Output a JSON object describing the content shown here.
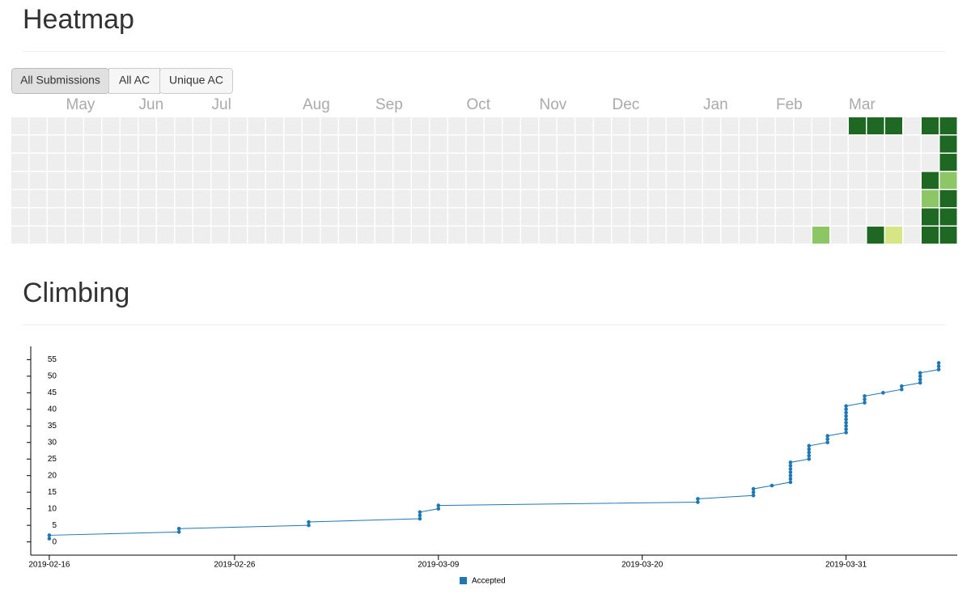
{
  "headings": [
    "Heatmap",
    "Climbing"
  ],
  "buttons": [
    "All Submissions",
    "All AC",
    "Unique AC"
  ],
  "chart_data": [
    {
      "type": "heatmap",
      "months": [
        "May",
        "Jun",
        "Jul",
        "Aug",
        "Sep",
        "Oct",
        "Nov",
        "Dec",
        "Jan",
        "Feb",
        "Mar"
      ],
      "colors": [
        "#eeeeee",
        "#d6e685",
        "#8cc665",
        "#1e6823"
      ],
      "levels": [
        [
          0,
          0,
          0,
          0,
          0,
          0,
          0,
          0,
          0,
          0,
          0,
          0,
          0,
          0,
          0,
          0,
          0,
          0,
          0,
          0,
          0,
          0,
          0,
          0,
          0,
          0,
          0,
          0,
          0,
          0,
          0,
          0,
          0,
          0,
          0,
          0,
          0,
          0,
          0,
          0,
          0,
          0,
          0,
          0,
          0,
          0,
          3,
          3,
          3,
          0,
          3,
          3
        ],
        [
          0,
          0,
          0,
          0,
          0,
          0,
          0,
          0,
          0,
          0,
          0,
          0,
          0,
          0,
          0,
          0,
          0,
          0,
          0,
          0,
          0,
          0,
          0,
          0,
          0,
          0,
          0,
          0,
          0,
          0,
          0,
          0,
          0,
          0,
          0,
          0,
          0,
          0,
          0,
          0,
          0,
          0,
          0,
          0,
          0,
          0,
          0,
          0,
          0,
          0,
          0,
          3
        ],
        [
          0,
          0,
          0,
          0,
          0,
          0,
          0,
          0,
          0,
          0,
          0,
          0,
          0,
          0,
          0,
          0,
          0,
          0,
          0,
          0,
          0,
          0,
          0,
          0,
          0,
          0,
          0,
          0,
          0,
          0,
          0,
          0,
          0,
          0,
          0,
          0,
          0,
          0,
          0,
          0,
          0,
          0,
          0,
          0,
          0,
          0,
          0,
          0,
          0,
          0,
          0,
          3
        ],
        [
          0,
          0,
          0,
          0,
          0,
          0,
          0,
          0,
          0,
          0,
          0,
          0,
          0,
          0,
          0,
          0,
          0,
          0,
          0,
          0,
          0,
          0,
          0,
          0,
          0,
          0,
          0,
          0,
          0,
          0,
          0,
          0,
          0,
          0,
          0,
          0,
          0,
          0,
          0,
          0,
          0,
          0,
          0,
          0,
          0,
          0,
          0,
          0,
          0,
          0,
          3,
          2
        ],
        [
          0,
          0,
          0,
          0,
          0,
          0,
          0,
          0,
          0,
          0,
          0,
          0,
          0,
          0,
          0,
          0,
          0,
          0,
          0,
          0,
          0,
          0,
          0,
          0,
          0,
          0,
          0,
          0,
          0,
          0,
          0,
          0,
          0,
          0,
          0,
          0,
          0,
          0,
          0,
          0,
          0,
          0,
          0,
          0,
          0,
          0,
          0,
          0,
          0,
          0,
          2,
          3
        ],
        [
          0,
          0,
          0,
          0,
          0,
          0,
          0,
          0,
          0,
          0,
          0,
          0,
          0,
          0,
          0,
          0,
          0,
          0,
          0,
          0,
          0,
          0,
          0,
          0,
          0,
          0,
          0,
          0,
          0,
          0,
          0,
          0,
          0,
          0,
          0,
          0,
          0,
          0,
          0,
          0,
          0,
          0,
          0,
          0,
          0,
          0,
          0,
          0,
          0,
          0,
          3,
          3
        ],
        [
          0,
          0,
          0,
          0,
          0,
          0,
          0,
          0,
          0,
          0,
          0,
          0,
          0,
          0,
          0,
          0,
          0,
          0,
          0,
          0,
          0,
          0,
          0,
          0,
          0,
          0,
          0,
          0,
          0,
          0,
          0,
          0,
          0,
          0,
          0,
          0,
          0,
          0,
          0,
          0,
          0,
          0,
          0,
          0,
          2,
          0,
          0,
          3,
          1,
          0,
          3,
          3
        ]
      ]
    },
    {
      "type": "line",
      "x": [
        "2019-02-16",
        "2019-02-16",
        "2019-02-23",
        "2019-02-23",
        "2019-03-02",
        "2019-03-02",
        "2019-03-08",
        "2019-03-08",
        "2019-03-08",
        "2019-03-09",
        "2019-03-09",
        "2019-03-23",
        "2019-03-23",
        "2019-03-26",
        "2019-03-26",
        "2019-03-26",
        "2019-03-27",
        "2019-03-28",
        "2019-03-28",
        "2019-03-28",
        "2019-03-28",
        "2019-03-28",
        "2019-03-28",
        "2019-03-28",
        "2019-03-29",
        "2019-03-29",
        "2019-03-29",
        "2019-03-29",
        "2019-03-29",
        "2019-03-30",
        "2019-03-30",
        "2019-03-30",
        "2019-03-31",
        "2019-03-31",
        "2019-03-31",
        "2019-03-31",
        "2019-03-31",
        "2019-03-31",
        "2019-03-31",
        "2019-03-31",
        "2019-03-31",
        "2019-04-01",
        "2019-04-01",
        "2019-04-01",
        "2019-04-02",
        "2019-04-03",
        "2019-04-03",
        "2019-04-04",
        "2019-04-04",
        "2019-04-04",
        "2019-04-04",
        "2019-04-05",
        "2019-04-05",
        "2019-04-05"
      ],
      "series": [
        {
          "name": "Accepted",
          "color": "#1f77b4",
          "values": [
            1,
            2,
            3,
            4,
            5,
            6,
            7,
            8,
            9,
            10,
            11,
            12,
            13,
            14,
            15,
            16,
            17,
            18,
            19,
            20,
            21,
            22,
            23,
            24,
            25,
            26,
            27,
            28,
            29,
            30,
            31,
            32,
            33,
            34,
            35,
            36,
            37,
            38,
            39,
            40,
            41,
            42,
            43,
            44,
            45,
            46,
            47,
            48,
            49,
            50,
            51,
            52,
            53,
            54
          ]
        }
      ],
      "xlim": [
        "2019-02-15",
        "2019-04-06"
      ],
      "xticks": [
        "2019-02-16",
        "2019-02-26",
        "2019-03-09",
        "2019-03-20",
        "2019-03-31"
      ],
      "ylim": [
        -4,
        59
      ],
      "yticks": [
        0,
        5,
        10,
        15,
        20,
        25,
        30,
        35,
        40,
        45,
        50,
        55
      ]
    }
  ]
}
